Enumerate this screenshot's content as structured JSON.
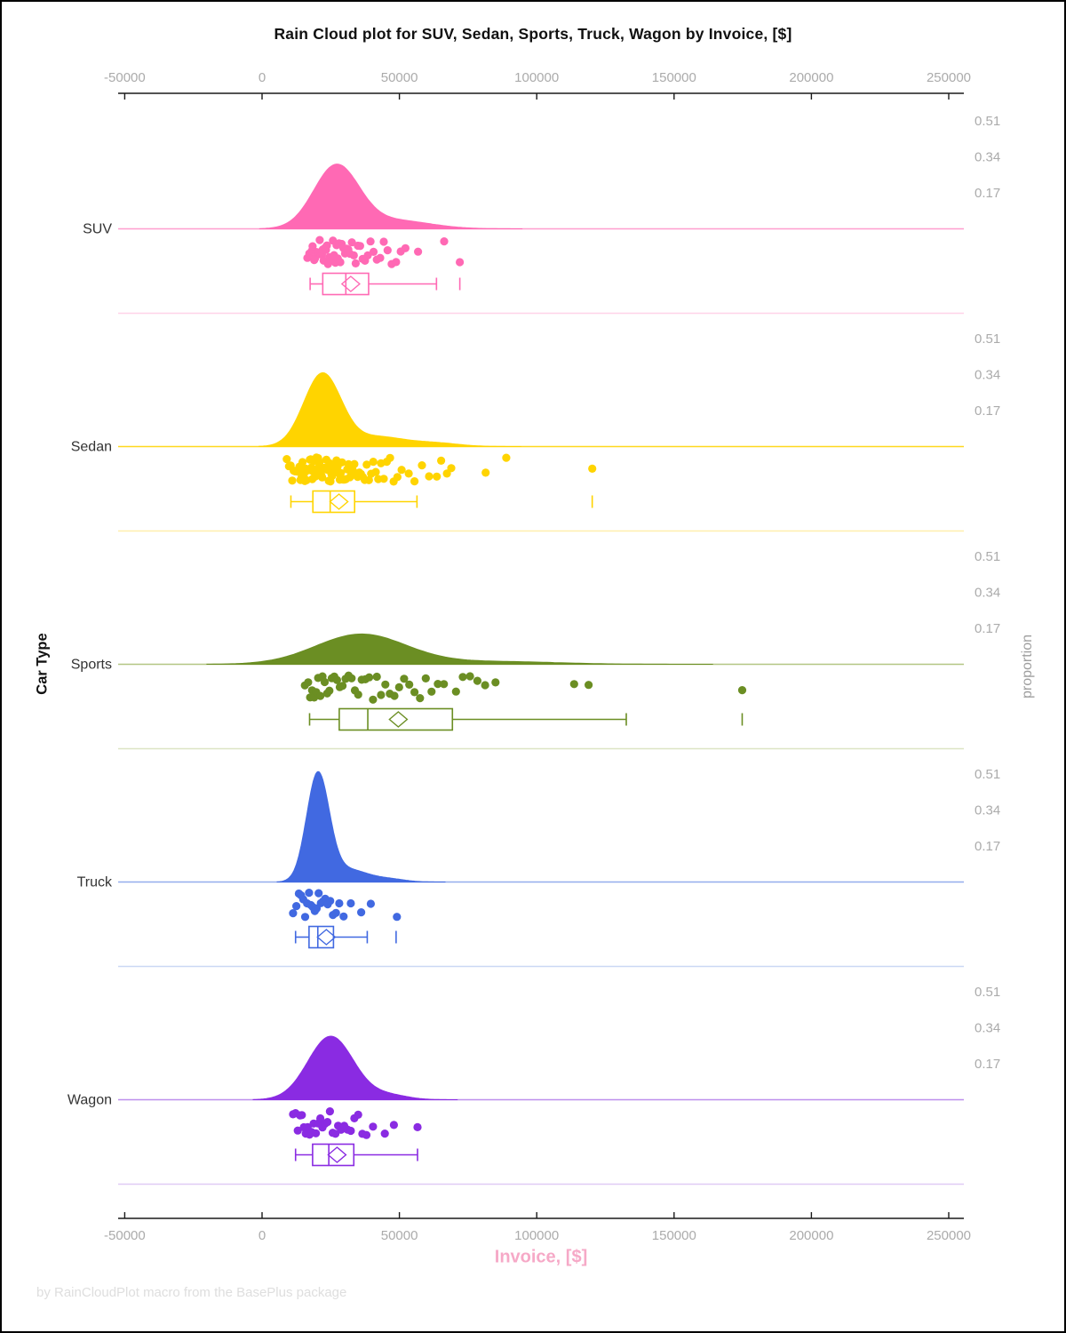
{
  "title": "Rain Cloud plot for SUV, Sedan, Sports, Truck, Wagon by Invoice, [$]",
  "footer": "by RainCloudPlot macro from the BasePlus package",
  "x_axis": {
    "label": "Invoice, [$]",
    "label_color": "#F6A9C7",
    "tick_values": [
      -50000,
      0,
      50000,
      100000,
      150000,
      200000,
      250000
    ],
    "tick_labels": [
      "-50000",
      "0",
      "50000",
      "100000",
      "150000",
      "200000",
      "250000"
    ],
    "range": [
      -52000,
      256000
    ],
    "tick_label_color": "#ABABAB"
  },
  "y_axis": {
    "label": "Car Type"
  },
  "right_axis": {
    "label": "proportion",
    "tick_values": [
      0.51,
      0.34,
      0.17
    ],
    "tick_labels": [
      "0.51",
      "0.34",
      "0.17"
    ],
    "tick_label_color": "#ABABAB"
  },
  "chart_data": {
    "type": "raincloud (half-violin density + jittered strip + box plot, horizontal)",
    "x_unit": "USD",
    "categories": [
      "SUV",
      "Sedan",
      "Sports",
      "Truck",
      "Wagon"
    ],
    "proportion_ticks": [
      0.51,
      0.34,
      0.17
    ],
    "series": [
      {
        "name": "SUV",
        "color": "#FF69B4",
        "baseline_color": "#FF9ECF",
        "divider_color": "#FFD3E8",
        "density_peak_proportion": 0.3,
        "density_components": [
          {
            "mu": 27000,
            "sigma": 8200,
            "peak": 0.295
          },
          {
            "mu": 48000,
            "sigma": 13000,
            "peak": 0.04
          }
        ],
        "box": {
          "whisker_low": 17500,
          "q1": 22100,
          "median": 30500,
          "mean": 32300,
          "q3": 38800,
          "whisker_high": 63500,
          "outliers": [
            72000
          ]
        },
        "points": [
          16500,
          17200,
          18100,
          18400,
          19000,
          19300,
          19800,
          20200,
          20500,
          21000,
          21300,
          21800,
          22100,
          22400,
          22900,
          23300,
          23600,
          24000,
          24500,
          24900,
          25300,
          25800,
          26200,
          26700,
          27100,
          27600,
          28000,
          28500,
          29000,
          29600,
          30200,
          30800,
          31400,
          32000,
          32700,
          33400,
          34100,
          34900,
          35700,
          36600,
          37500,
          38500,
          39500,
          40600,
          41800,
          43000,
          44300,
          45700,
          47200,
          48800,
          50500,
          52200,
          56800,
          66300,
          72000
        ]
      },
      {
        "name": "Sedan",
        "color": "#FFD400",
        "baseline_color": "#FFD81F",
        "divider_color": "#FFEFAD",
        "density_peak_proportion": 0.35,
        "density_components": [
          {
            "mu": 22000,
            "sigma": 6800,
            "peak": 0.345
          },
          {
            "mu": 42000,
            "sigma": 9000,
            "peak": 0.045
          },
          {
            "mu": 62000,
            "sigma": 9000,
            "peak": 0.018
          }
        ],
        "box": {
          "whisker_low": 10500,
          "q1": 18500,
          "median": 24800,
          "mean": 28000,
          "q3": 33700,
          "whisker_high": 56400,
          "outliers": [
            120200
          ]
        },
        "points": [
          9000,
          9800,
          10400,
          11000,
          11500,
          12000,
          12400,
          12800,
          13200,
          13600,
          14000,
          14400,
          14700,
          15000,
          15300,
          15600,
          15900,
          16200,
          16500,
          16800,
          17100,
          17400,
          17700,
          18000,
          18300,
          18600,
          18900,
          19200,
          19500,
          19800,
          20100,
          20400,
          20700,
          21000,
          21300,
          21600,
          21900,
          22200,
          22500,
          22800,
          23100,
          23400,
          23700,
          24000,
          24300,
          24600,
          24900,
          25200,
          25500,
          25900,
          26300,
          26700,
          27100,
          27500,
          27900,
          28300,
          28700,
          29100,
          29500,
          30000,
          30500,
          31000,
          31500,
          32000,
          32500,
          33000,
          33600,
          34200,
          34800,
          35400,
          36000,
          36700,
          37400,
          38100,
          38900,
          39700,
          40500,
          41400,
          42300,
          43300,
          44300,
          45400,
          46600,
          47900,
          49300,
          50800,
          53400,
          55500,
          58200,
          60800,
          63600,
          65200,
          67300,
          68900,
          81400,
          88900,
          120200
        ]
      },
      {
        "name": "Sports",
        "color": "#6B8E23",
        "baseline_color": "#B3C683",
        "divider_color": "#DCE5C4",
        "density_peak_proportion": 0.145,
        "density_components": [
          {
            "mu": 36000,
            "sigma": 16500,
            "peak": 0.142
          },
          {
            "mu": 85000,
            "sigma": 22000,
            "peak": 0.013
          }
        ],
        "box": {
          "whisker_low": 17300,
          "q1": 28100,
          "median": 38500,
          "mean": 49600,
          "q3": 69300,
          "whisker_high": 132600,
          "outliers": [
            174800
          ]
        },
        "points": [
          15600,
          16800,
          17500,
          18200,
          19000,
          19700,
          20400,
          21200,
          22000,
          22800,
          23700,
          24500,
          25400,
          26300,
          27300,
          28300,
          29300,
          30400,
          31500,
          32600,
          33800,
          35000,
          36300,
          37600,
          39000,
          40400,
          41800,
          43300,
          44900,
          46500,
          48200,
          49900,
          51700,
          53600,
          55500,
          57500,
          59600,
          61700,
          64000,
          66200,
          70600,
          73100,
          75700,
          78400,
          81200,
          85000,
          113600,
          118900,
          174800
        ]
      },
      {
        "name": "Truck",
        "color": "#4169E1",
        "baseline_color": "#93ACEC",
        "divider_color": "#CBD8F4",
        "density_peak_proportion": 0.52,
        "density_components": [
          {
            "mu": 20300,
            "sigma": 4100,
            "peak": 0.5
          },
          {
            "mu": 31000,
            "sigma": 7500,
            "peak": 0.06
          },
          {
            "mu": 47000,
            "sigma": 5500,
            "peak": 0.012
          }
        ],
        "box": {
          "whisker_low": 12200,
          "q1": 17100,
          "median": 20300,
          "mean": 23400,
          "q3": 26000,
          "whisker_high": 38300,
          "outliers": [
            48800
          ]
        },
        "points": [
          11300,
          12500,
          13400,
          14200,
          15000,
          15700,
          16400,
          17100,
          17800,
          18500,
          19200,
          19900,
          20600,
          21400,
          22200,
          23000,
          23900,
          24800,
          25800,
          26900,
          28100,
          29700,
          32300,
          36100,
          39600,
          49100
        ]
      },
      {
        "name": "Wagon",
        "color": "#8A2BE2",
        "baseline_color": "#BE8FED",
        "divider_color": "#E0CBF5",
        "density_peak_proportion": 0.31,
        "density_components": [
          {
            "mu": 25000,
            "sigma": 8300,
            "peak": 0.3
          },
          {
            "mu": 46000,
            "sigma": 7000,
            "peak": 0.022
          }
        ],
        "box": {
          "whisker_low": 12200,
          "q1": 18400,
          "median": 24300,
          "mean": 27300,
          "q3": 33400,
          "whisker_high": 56600,
          "outliers": []
        },
        "points": [
          11300,
          12200,
          13000,
          13800,
          14500,
          15200,
          15900,
          16600,
          17300,
          18000,
          18800,
          19600,
          20400,
          21200,
          22000,
          22900,
          23800,
          24700,
          25700,
          26700,
          27700,
          28800,
          29900,
          31100,
          32300,
          33600,
          35000,
          36500,
          38000,
          40400,
          44700,
          48000,
          56600
        ]
      }
    ]
  }
}
